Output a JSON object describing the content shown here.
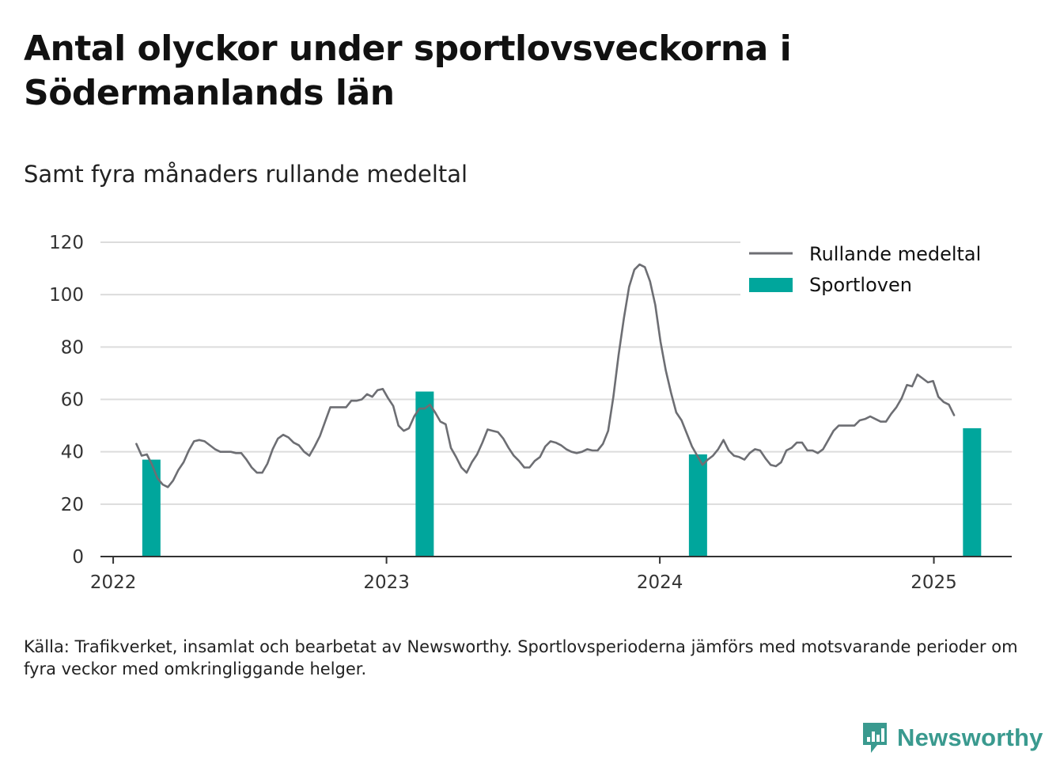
{
  "title": "Antal olyckor under sportlovsveckorna i Södermanlands län",
  "subtitle": "Samt fyra månaders rullande medeltal",
  "source": "Källa: Trafikverket, insamlat och bearbetat av Newsworthy. Sportlovsperioderna jämförs med motsvarande perioder om fyra veckor med omkringliggande helger.",
  "brand": {
    "name": "Newsworthy",
    "icon": "newsworthy-logo-icon",
    "color": "#3a9a8f"
  },
  "chart_data": {
    "type": "bar",
    "ylim": [
      0,
      120
    ],
    "yticks": [
      0,
      20,
      40,
      60,
      80,
      100,
      120
    ],
    "xticks": [
      {
        "label": "2022",
        "x": "2022-01-01"
      },
      {
        "label": "2023",
        "x": "2023-01-01"
      },
      {
        "label": "2024",
        "x": "2024-01-01"
      },
      {
        "label": "2025",
        "x": "2025-01-01"
      }
    ],
    "xlim": [
      "2021-12-15",
      "2025-04-15"
    ],
    "grid": true,
    "legend_position": "top-right",
    "colors": {
      "bars": "#00a69c",
      "line": "#6d6e73",
      "grid": "#dcdcdc",
      "axis": "#333333"
    },
    "series": [
      {
        "name": "Sportloven",
        "type": "bar",
        "points": [
          {
            "x": "2022-02-21",
            "y": 37
          },
          {
            "x": "2023-02-21",
            "y": 63
          },
          {
            "x": "2024-02-21",
            "y": 39
          },
          {
            "x": "2025-02-21",
            "y": 49
          }
        ]
      },
      {
        "name": "Rullande medeltal",
        "type": "line",
        "points": [
          {
            "x": "2022-02-01",
            "y": 43
          },
          {
            "x": "2022-02-08",
            "y": 38.5
          },
          {
            "x": "2022-02-15",
            "y": 39
          },
          {
            "x": "2022-02-22",
            "y": 35
          },
          {
            "x": "2022-03-01",
            "y": 30
          },
          {
            "x": "2022-03-08",
            "y": 27.5
          },
          {
            "x": "2022-03-15",
            "y": 26.5
          },
          {
            "x": "2022-03-22",
            "y": 29
          },
          {
            "x": "2022-03-29",
            "y": 33
          },
          {
            "x": "2022-04-05",
            "y": 36
          },
          {
            "x": "2022-04-12",
            "y": 40.5
          },
          {
            "x": "2022-04-19",
            "y": 44
          },
          {
            "x": "2022-04-26",
            "y": 44.5
          },
          {
            "x": "2022-05-03",
            "y": 44
          },
          {
            "x": "2022-05-10",
            "y": 42.5
          },
          {
            "x": "2022-05-17",
            "y": 41
          },
          {
            "x": "2022-05-24",
            "y": 40
          },
          {
            "x": "2022-05-31",
            "y": 40
          },
          {
            "x": "2022-06-07",
            "y": 40
          },
          {
            "x": "2022-06-14",
            "y": 39.5
          },
          {
            "x": "2022-06-21",
            "y": 39.5
          },
          {
            "x": "2022-06-28",
            "y": 37
          },
          {
            "x": "2022-07-05",
            "y": 34
          },
          {
            "x": "2022-07-12",
            "y": 32
          },
          {
            "x": "2022-07-19",
            "y": 32
          },
          {
            "x": "2022-07-26",
            "y": 35.5
          },
          {
            "x": "2022-08-02",
            "y": 41
          },
          {
            "x": "2022-08-09",
            "y": 45
          },
          {
            "x": "2022-08-16",
            "y": 46.5
          },
          {
            "x": "2022-08-23",
            "y": 45.5
          },
          {
            "x": "2022-08-30",
            "y": 43.5
          },
          {
            "x": "2022-09-06",
            "y": 42.5
          },
          {
            "x": "2022-09-13",
            "y": 40
          },
          {
            "x": "2022-09-20",
            "y": 38.5
          },
          {
            "x": "2022-09-27",
            "y": 42
          },
          {
            "x": "2022-10-04",
            "y": 46
          },
          {
            "x": "2022-10-11",
            "y": 51.5
          },
          {
            "x": "2022-10-18",
            "y": 57
          },
          {
            "x": "2022-10-25",
            "y": 57
          },
          {
            "x": "2022-11-01",
            "y": 57
          },
          {
            "x": "2022-11-08",
            "y": 57
          },
          {
            "x": "2022-11-15",
            "y": 59.5
          },
          {
            "x": "2022-11-22",
            "y": 59.5
          },
          {
            "x": "2022-11-29",
            "y": 60
          },
          {
            "x": "2022-12-06",
            "y": 62
          },
          {
            "x": "2022-12-13",
            "y": 61
          },
          {
            "x": "2022-12-20",
            "y": 63.5
          },
          {
            "x": "2022-12-27",
            "y": 64
          },
          {
            "x": "2023-01-03",
            "y": 60.5
          },
          {
            "x": "2023-01-10",
            "y": 57.5
          },
          {
            "x": "2023-01-17",
            "y": 50
          },
          {
            "x": "2023-01-24",
            "y": 48
          },
          {
            "x": "2023-01-31",
            "y": 49
          },
          {
            "x": "2023-02-07",
            "y": 53.5
          },
          {
            "x": "2023-02-14",
            "y": 56.5
          },
          {
            "x": "2023-02-21",
            "y": 56.5
          },
          {
            "x": "2023-02-28",
            "y": 58
          },
          {
            "x": "2023-03-07",
            "y": 55
          },
          {
            "x": "2023-03-14",
            "y": 51.5
          },
          {
            "x": "2023-03-21",
            "y": 50.5
          },
          {
            "x": "2023-03-28",
            "y": 41.5
          },
          {
            "x": "2023-04-04",
            "y": 38
          },
          {
            "x": "2023-04-11",
            "y": 34
          },
          {
            "x": "2023-04-18",
            "y": 32
          },
          {
            "x": "2023-04-25",
            "y": 36
          },
          {
            "x": "2023-05-02",
            "y": 39
          },
          {
            "x": "2023-05-09",
            "y": 43.5
          },
          {
            "x": "2023-05-16",
            "y": 48.5
          },
          {
            "x": "2023-05-23",
            "y": 48
          },
          {
            "x": "2023-05-30",
            "y": 47.5
          },
          {
            "x": "2023-06-06",
            "y": 45
          },
          {
            "x": "2023-06-13",
            "y": 41.5
          },
          {
            "x": "2023-06-20",
            "y": 38.5
          },
          {
            "x": "2023-06-27",
            "y": 36.5
          },
          {
            "x": "2023-07-04",
            "y": 34
          },
          {
            "x": "2023-07-11",
            "y": 34
          },
          {
            "x": "2023-07-18",
            "y": 36.5
          },
          {
            "x": "2023-07-25",
            "y": 38
          },
          {
            "x": "2023-08-01",
            "y": 42
          },
          {
            "x": "2023-08-08",
            "y": 44
          },
          {
            "x": "2023-08-15",
            "y": 43.5
          },
          {
            "x": "2023-08-22",
            "y": 42.5
          },
          {
            "x": "2023-08-29",
            "y": 41
          },
          {
            "x": "2023-09-05",
            "y": 40
          },
          {
            "x": "2023-09-12",
            "y": 39.5
          },
          {
            "x": "2023-09-19",
            "y": 40
          },
          {
            "x": "2023-09-26",
            "y": 41
          },
          {
            "x": "2023-10-03",
            "y": 40.5
          },
          {
            "x": "2023-10-10",
            "y": 40.5
          },
          {
            "x": "2023-10-17",
            "y": 43
          },
          {
            "x": "2023-10-24",
            "y": 48
          },
          {
            "x": "2023-10-31",
            "y": 61
          },
          {
            "x": "2023-11-07",
            "y": 77
          },
          {
            "x": "2023-11-14",
            "y": 91
          },
          {
            "x": "2023-11-21",
            "y": 103
          },
          {
            "x": "2023-11-28",
            "y": 109.5
          },
          {
            "x": "2023-12-05",
            "y": 111.5
          },
          {
            "x": "2023-12-12",
            "y": 110.5
          },
          {
            "x": "2023-12-19",
            "y": 105
          },
          {
            "x": "2023-12-26",
            "y": 96
          },
          {
            "x": "2024-01-02",
            "y": 82
          },
          {
            "x": "2024-01-09",
            "y": 71
          },
          {
            "x": "2024-01-16",
            "y": 62.5
          },
          {
            "x": "2024-01-23",
            "y": 55
          },
          {
            "x": "2024-01-30",
            "y": 52
          },
          {
            "x": "2024-02-06",
            "y": 47
          },
          {
            "x": "2024-02-13",
            "y": 42
          },
          {
            "x": "2024-02-20",
            "y": 38.5
          },
          {
            "x": "2024-02-27",
            "y": 35
          },
          {
            "x": "2024-03-05",
            "y": 37
          },
          {
            "x": "2024-03-12",
            "y": 38.5
          },
          {
            "x": "2024-03-19",
            "y": 41
          },
          {
            "x": "2024-03-26",
            "y": 44.5
          },
          {
            "x": "2024-04-02",
            "y": 40.5
          },
          {
            "x": "2024-04-09",
            "y": 38.5
          },
          {
            "x": "2024-04-16",
            "y": 38
          },
          {
            "x": "2024-04-23",
            "y": 37
          },
          {
            "x": "2024-04-30",
            "y": 39.5
          },
          {
            "x": "2024-05-07",
            "y": 41
          },
          {
            "x": "2024-05-14",
            "y": 40.5
          },
          {
            "x": "2024-05-21",
            "y": 37.5
          },
          {
            "x": "2024-05-28",
            "y": 35
          },
          {
            "x": "2024-06-04",
            "y": 34.5
          },
          {
            "x": "2024-06-11",
            "y": 36
          },
          {
            "x": "2024-06-18",
            "y": 40.5
          },
          {
            "x": "2024-06-25",
            "y": 41.5
          },
          {
            "x": "2024-07-02",
            "y": 43.5
          },
          {
            "x": "2024-07-09",
            "y": 43.5
          },
          {
            "x": "2024-07-16",
            "y": 40.5
          },
          {
            "x": "2024-07-23",
            "y": 40.5
          },
          {
            "x": "2024-07-30",
            "y": 39.5
          },
          {
            "x": "2024-08-06",
            "y": 41
          },
          {
            "x": "2024-08-13",
            "y": 44.5
          },
          {
            "x": "2024-08-20",
            "y": 48
          },
          {
            "x": "2024-08-27",
            "y": 50
          },
          {
            "x": "2024-09-03",
            "y": 50
          },
          {
            "x": "2024-09-10",
            "y": 50
          },
          {
            "x": "2024-09-17",
            "y": 50
          },
          {
            "x": "2024-09-24",
            "y": 52
          },
          {
            "x": "2024-10-01",
            "y": 52.5
          },
          {
            "x": "2024-10-08",
            "y": 53.5
          },
          {
            "x": "2024-10-15",
            "y": 52.5
          },
          {
            "x": "2024-10-22",
            "y": 51.5
          },
          {
            "x": "2024-10-29",
            "y": 51.5
          },
          {
            "x": "2024-11-05",
            "y": 54.5
          },
          {
            "x": "2024-11-12",
            "y": 57
          },
          {
            "x": "2024-11-19",
            "y": 60.5
          },
          {
            "x": "2024-11-26",
            "y": 65.5
          },
          {
            "x": "2024-12-03",
            "y": 65
          },
          {
            "x": "2024-12-10",
            "y": 69.5
          },
          {
            "x": "2024-12-17",
            "y": 68
          },
          {
            "x": "2024-12-24",
            "y": 66.5
          },
          {
            "x": "2024-12-31",
            "y": 67
          },
          {
            "x": "2025-01-07",
            "y": 61
          },
          {
            "x": "2025-01-14",
            "y": 59
          },
          {
            "x": "2025-01-21",
            "y": 58
          },
          {
            "x": "2025-01-28",
            "y": 54
          }
        ]
      }
    ]
  }
}
